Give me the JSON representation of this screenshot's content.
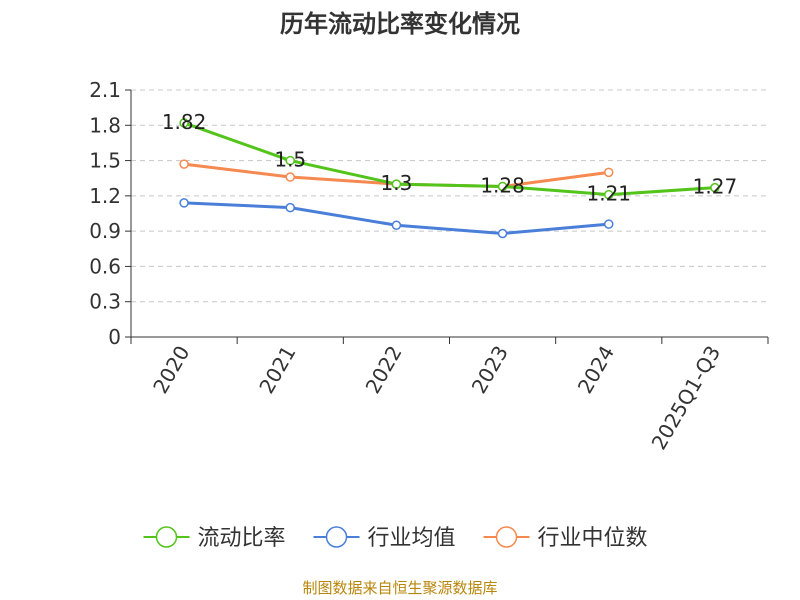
{
  "chart_data": {
    "type": "line",
    "title": "历年流动比率变化情况",
    "categories": [
      "2020",
      "2021",
      "2022",
      "2023",
      "2024",
      "2025Q1-Q3"
    ],
    "yticks": [
      "0",
      "0.3",
      "0.6",
      "0.9",
      "1.2",
      "1.5",
      "1.8",
      "2.1"
    ],
    "ylim": [
      0,
      2.1
    ],
    "grid": true,
    "legend_position": "bottom",
    "series": [
      {
        "name": "流动比率",
        "color": "#52c41a",
        "values": [
          1.82,
          1.5,
          1.3,
          1.28,
          1.21,
          1.27
        ],
        "data_labels": [
          "1.82",
          "1.5",
          "1.3",
          "1.28",
          "1.21",
          "1.27"
        ]
      },
      {
        "name": "行业均值",
        "color": "#4a7fd9",
        "values": [
          1.14,
          1.1,
          0.95,
          0.88,
          0.96,
          null
        ]
      },
      {
        "name": "行业中位数",
        "color": "#f5894f",
        "values": [
          1.47,
          1.36,
          1.3,
          1.28,
          1.4,
          null
        ]
      }
    ]
  },
  "source_note": "制图数据来自恒生聚源数据库"
}
